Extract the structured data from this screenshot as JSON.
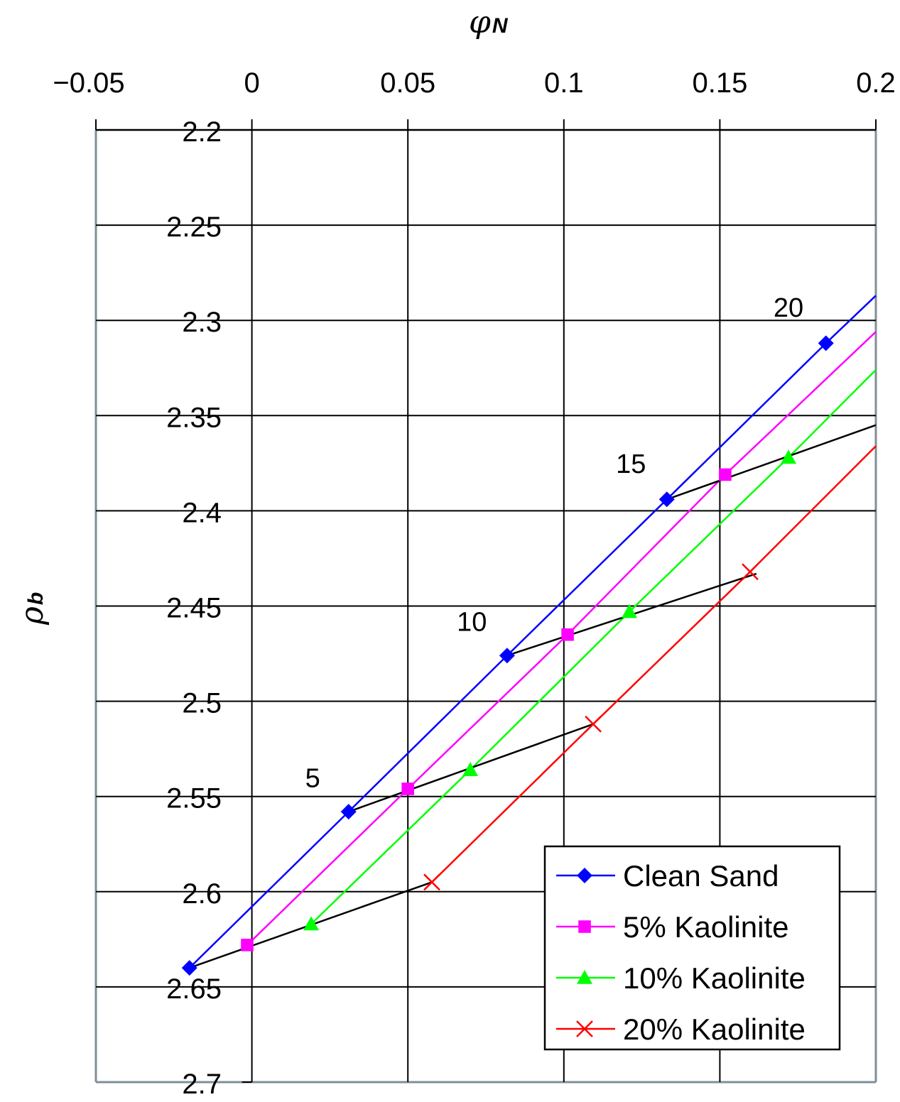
{
  "chart_data": {
    "type": "line",
    "title": "",
    "xlabel": "φN",
    "ylabel": "ρb",
    "xlim": [
      -0.05,
      0.2
    ],
    "ylim": [
      2.7,
      2.2
    ],
    "y_inverted": true,
    "x_axis_position": "top",
    "grid": true,
    "x_ticks": [
      "−0.05",
      "0",
      "0.05",
      "0.1",
      "0.15",
      "0.2"
    ],
    "x_tick_values": [
      -0.05,
      0,
      0.05,
      0.1,
      0.15,
      0.2
    ],
    "y_ticks": [
      "2.2",
      "2.25",
      "2.3",
      "2.35",
      "2.4",
      "2.45",
      "2.5",
      "2.55",
      "2.6",
      "2.65",
      "2.7"
    ],
    "y_tick_values": [
      2.2,
      2.25,
      2.3,
      2.35,
      2.4,
      2.45,
      2.5,
      2.55,
      2.6,
      2.65,
      2.7
    ],
    "legend_position": "lower right",
    "series": [
      {
        "name": "Clean Sand",
        "color": "#0000ff",
        "marker": "diamond",
        "points": [
          [
            -0.02,
            2.64
          ],
          [
            0.031,
            2.558
          ],
          [
            0.0818,
            2.476
          ],
          [
            0.133,
            2.394
          ],
          [
            0.184,
            2.312
          ]
        ],
        "line_end": [
          0.2,
          2.287
        ]
      },
      {
        "name": "5% Kaolinite",
        "color": "#ff00ff",
        "marker": "square",
        "points": [
          [
            -0.0015,
            2.628
          ],
          [
            0.05,
            2.546
          ],
          [
            0.1012,
            2.465
          ],
          [
            0.1517,
            2.381
          ]
        ],
        "line_end": [
          0.2,
          2.306
        ]
      },
      {
        "name": "10% Kaolinite",
        "color": "#00ff00",
        "marker": "triangle",
        "points": [
          [
            0.019,
            2.617
          ],
          [
            0.07,
            2.536
          ],
          [
            0.121,
            2.453
          ],
          [
            0.172,
            2.372
          ]
        ],
        "line_end": [
          0.2,
          2.326
        ]
      },
      {
        "name": "20% Kaolinite",
        "color": "#ff0000",
        "marker": "x",
        "points": [
          [
            0.0577,
            2.595
          ],
          [
            0.1094,
            2.512
          ],
          [
            0.1597,
            2.432
          ]
        ],
        "line_end": [
          0.2,
          2.366
        ]
      }
    ],
    "iso_lines": [
      {
        "label": "",
        "color": "#000000",
        "points": [
          [
            -0.02,
            2.64
          ],
          [
            0.0577,
            2.595
          ]
        ]
      },
      {
        "label": "",
        "color": "#000000",
        "points": [
          [
            0.031,
            2.558
          ],
          [
            0.1094,
            2.512
          ]
        ]
      },
      {
        "label": "",
        "color": "#000000",
        "points": [
          [
            0.0818,
            2.476
          ],
          [
            0.1617,
            2.433
          ]
        ]
      },
      {
        "label": "",
        "color": "#000000",
        "points": [
          [
            0.133,
            2.394
          ],
          [
            0.2,
            2.355
          ]
        ]
      }
    ],
    "annotations": [
      {
        "text": "5",
        "x": 0.0195,
        "y": 2.545
      },
      {
        "text": "10",
        "x": 0.0705,
        "y": 2.463
      },
      {
        "text": "15",
        "x": 0.1215,
        "y": 2.38
      },
      {
        "text": "20",
        "x": 0.172,
        "y": 2.298
      }
    ]
  },
  "labels": {
    "x_axis_main": "φ",
    "x_axis_sub": "N",
    "y_axis_main": "ρ",
    "y_axis_sub": "b"
  }
}
